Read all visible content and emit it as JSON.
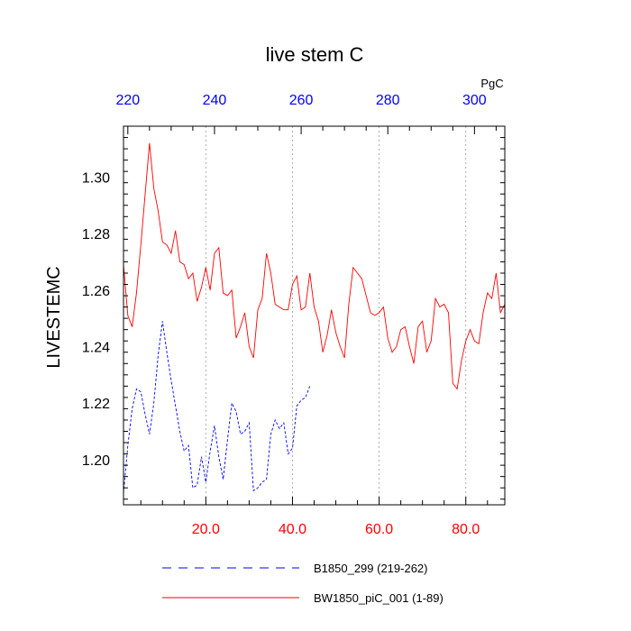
{
  "chart_data": {
    "type": "line",
    "title": "live stem C",
    "ylabel": "LIVESTEMC",
    "units": "PgC",
    "xlim": [
      1,
      89
    ],
    "ylim": [
      1.184,
      1.318
    ],
    "bottom_axis_color": "#ff0000",
    "top_axis_color": "#0000ff",
    "x_ticks": [
      20,
      40,
      60,
      80
    ],
    "x_tick_labels": [
      "20.0",
      "40.0",
      "60.0",
      "80.0"
    ],
    "top_ticks": [
      220,
      240,
      260,
      280,
      300
    ],
    "top_tick_labels": [
      "220",
      "240",
      "260",
      "280",
      "300"
    ],
    "top_offset": 218,
    "y_ticks": [
      1.2,
      1.22,
      1.24,
      1.26,
      1.28,
      1.3
    ],
    "y_tick_labels": [
      "1.20",
      "1.22",
      "1.24",
      "1.26",
      "1.28",
      "1.30"
    ],
    "grid": "vertical dotted at major x ticks",
    "legend_position": "bottom",
    "series": [
      {
        "name": "B1850_299 (219-262)",
        "color": "#0000ff",
        "dash": true,
        "x": [
          1,
          2,
          3,
          4,
          5,
          6,
          7,
          8,
          9,
          10,
          11,
          12,
          13,
          14,
          15,
          16,
          17,
          18,
          19,
          20,
          21,
          22,
          23,
          24,
          25,
          26,
          27,
          28,
          29,
          30,
          31,
          32,
          33,
          34,
          35,
          36,
          37,
          38,
          39,
          40,
          41,
          42,
          43,
          44
        ],
        "y": [
          1.188,
          1.205,
          1.218,
          1.225,
          1.224,
          1.216,
          1.209,
          1.22,
          1.237,
          1.249,
          1.238,
          1.228,
          1.219,
          1.21,
          1.203,
          1.205,
          1.19,
          1.191,
          1.201,
          1.192,
          1.203,
          1.212,
          1.201,
          1.193,
          1.207,
          1.22,
          1.217,
          1.209,
          1.21,
          1.213,
          1.189,
          1.19,
          1.192,
          1.193,
          1.209,
          1.214,
          1.211,
          1.213,
          1.202,
          1.204,
          1.219,
          1.221,
          1.222,
          1.226
        ]
      },
      {
        "name": "BW1850_piC_001 (1-89)",
        "color": "#ff0000",
        "dash": false,
        "x": [
          1,
          2,
          3,
          4,
          5,
          6,
          7,
          8,
          9,
          10,
          11,
          12,
          13,
          14,
          15,
          16,
          17,
          18,
          19,
          20,
          21,
          22,
          23,
          24,
          25,
          26,
          27,
          28,
          29,
          30,
          31,
          32,
          33,
          34,
          35,
          36,
          37,
          38,
          39,
          40,
          41,
          42,
          43,
          44,
          45,
          46,
          47,
          48,
          49,
          50,
          51,
          52,
          53,
          54,
          55,
          56,
          57,
          58,
          59,
          60,
          61,
          62,
          63,
          64,
          65,
          66,
          67,
          68,
          69,
          70,
          71,
          72,
          73,
          74,
          75,
          76,
          77,
          78,
          79,
          80,
          81,
          82,
          83,
          84,
          85,
          86,
          87,
          88,
          89
        ],
        "y": [
          1.269,
          1.251,
          1.247,
          1.259,
          1.276,
          1.294,
          1.312,
          1.296,
          1.288,
          1.277,
          1.276,
          1.273,
          1.281,
          1.27,
          1.269,
          1.264,
          1.266,
          1.256,
          1.261,
          1.268,
          1.26,
          1.273,
          1.275,
          1.259,
          1.258,
          1.26,
          1.243,
          1.247,
          1.252,
          1.24,
          1.236,
          1.253,
          1.257,
          1.273,
          1.266,
          1.255,
          1.254,
          1.253,
          1.253,
          1.262,
          1.265,
          1.253,
          1.254,
          1.266,
          1.254,
          1.249,
          1.238,
          1.244,
          1.253,
          1.245,
          1.24,
          1.236,
          1.255,
          1.268,
          1.266,
          1.264,
          1.258,
          1.252,
          1.251,
          1.252,
          1.254,
          1.243,
          1.238,
          1.24,
          1.246,
          1.247,
          1.24,
          1.234,
          1.247,
          1.249,
          1.238,
          1.242,
          1.257,
          1.254,
          1.255,
          1.252,
          1.227,
          1.225,
          1.235,
          1.242,
          1.246,
          1.242,
          1.241,
          1.252,
          1.259,
          1.257,
          1.266,
          1.252,
          1.255
        ]
      }
    ]
  }
}
